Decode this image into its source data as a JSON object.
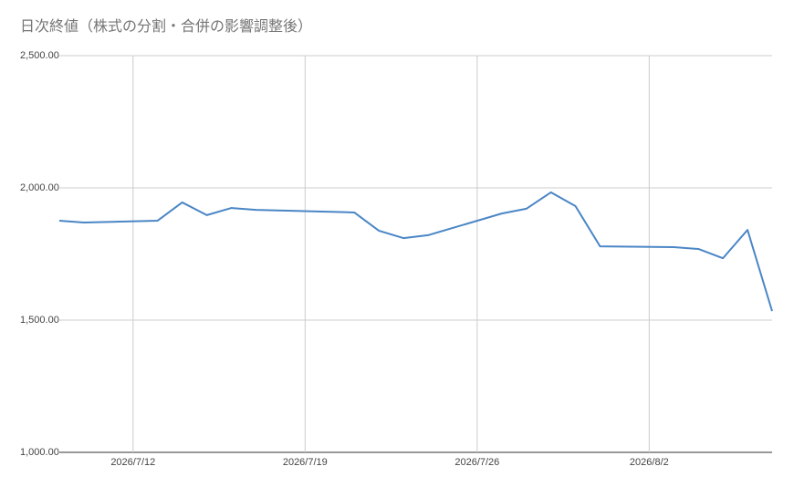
{
  "chart_data": {
    "type": "line",
    "title": "日次終値（株式の分割・合併の影響調整後）",
    "x": [
      "2026/7/9",
      "2026/7/10",
      "2026/7/13",
      "2026/7/14",
      "2026/7/15",
      "2026/7/16",
      "2026/7/17",
      "2026/7/21",
      "2026/7/22",
      "2026/7/23",
      "2026/7/24",
      "2026/7/27",
      "2026/7/28",
      "2026/7/29",
      "2026/7/30",
      "2026/7/31",
      "2026/8/3",
      "2026/8/4",
      "2026/8/5",
      "2026/8/6",
      "2026/8/7"
    ],
    "series": [
      {
        "color": "#4a86c5",
        "values": [
          1876,
          1869,
          1876,
          1945,
          1897,
          1924,
          1917,
          1907,
          1838,
          1810,
          1821,
          1903,
          1921,
          1983,
          1931,
          1779,
          1776,
          1769,
          1734,
          1841,
          1534
        ]
      }
    ],
    "xlim": [
      "2026/7/9",
      "2026/8/7"
    ],
    "xticks": [
      "2026/7/12",
      "2026/7/19",
      "2026/7/26",
      "2026/8/2"
    ],
    "ylim": [
      1000,
      2500
    ],
    "yticks": [
      {
        "value": 1000,
        "label": "1,000.00"
      },
      {
        "value": 1500,
        "label": "1,500.00"
      },
      {
        "value": 2000,
        "label": "2,000.00"
      },
      {
        "value": 2500,
        "label": "2,500.00"
      }
    ],
    "grid": true
  }
}
